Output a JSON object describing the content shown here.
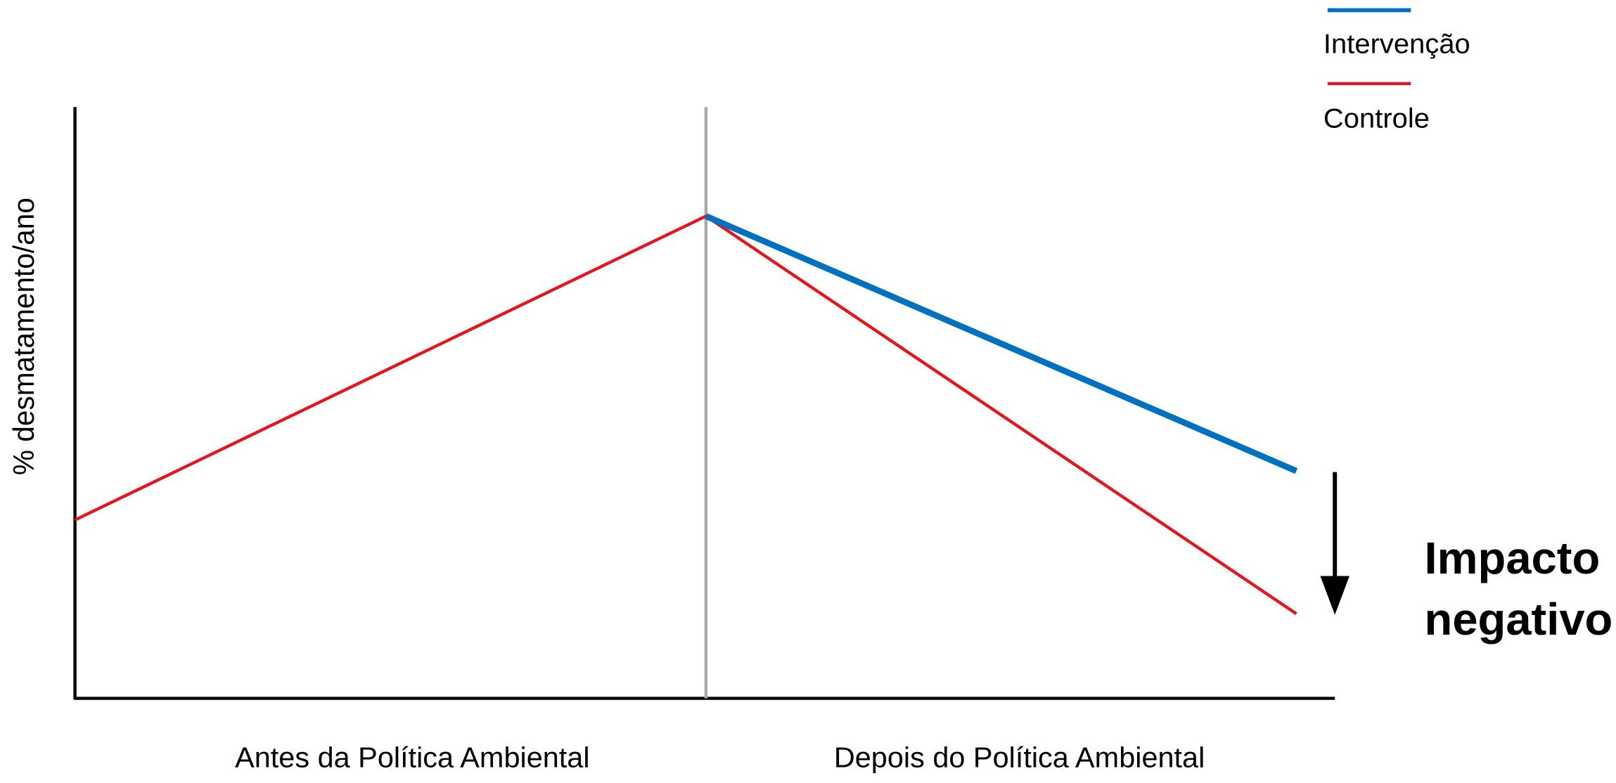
{
  "legend": {
    "items": [
      {
        "label": "Intervenção",
        "color": "#0070c0"
      },
      {
        "label": "Controle",
        "color": "#e8141c"
      }
    ]
  },
  "axes": {
    "y_label": "% desmatamento/ano",
    "x_labels": [
      "Antes da Política Ambiental",
      "Depois do Política Ambiental"
    ]
  },
  "annotation": {
    "lines": [
      "Impacto",
      "negativo"
    ]
  }
}
